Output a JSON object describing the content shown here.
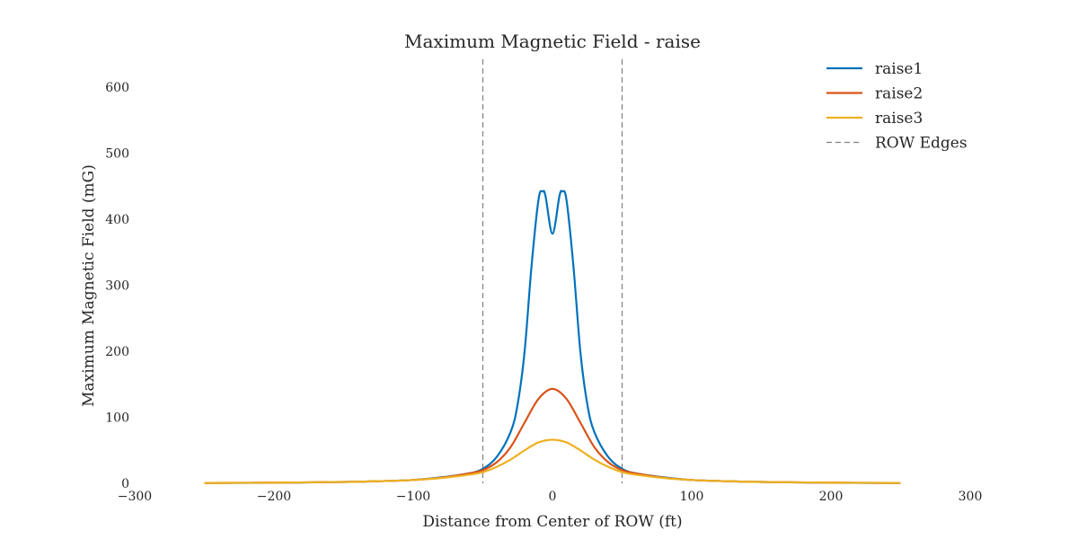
{
  "chart_data": {
    "type": "line",
    "title": "Maximum Magnetic Field - raise",
    "xlabel": "Distance from Center of ROW (ft)",
    "ylabel": "Maximum Magnetic Field (mG)",
    "xlim": [
      -300,
      300
    ],
    "ylim": [
      0,
      600
    ],
    "x_ticks": [
      "−300",
      "−200",
      "−100",
      "0",
      "100",
      "200",
      "300"
    ],
    "y_ticks": [
      "0",
      "100",
      "200",
      "300",
      "400",
      "500",
      "600"
    ],
    "grid": false,
    "legend_position": "top-right",
    "row_edges": {
      "name": "ROW Edges",
      "x": [
        -50,
        50
      ],
      "color": "#7f7f7f"
    },
    "series": [
      {
        "name": "raise1",
        "color": "#0072bd",
        "x": [
          -250,
          -200,
          -150,
          -120,
          -100,
          -80,
          -60,
          -50,
          -40,
          -30,
          -25,
          -20,
          -15,
          -10,
          -7,
          -5,
          0,
          5,
          7,
          10,
          15,
          20,
          25,
          30,
          40,
          50,
          60,
          80,
          100,
          120,
          150,
          200,
          250
        ],
        "y": [
          0.5,
          0.8,
          2,
          3.5,
          5,
          9,
          15,
          22,
          40,
          78,
          120,
          200,
          330,
          430,
          442,
          435,
          378,
          435,
          442,
          430,
          330,
          200,
          120,
          78,
          40,
          22,
          15,
          9,
          5,
          3.5,
          2,
          0.8,
          0.5
        ]
      },
      {
        "name": "raise2",
        "color": "#d95319",
        "x": [
          -250,
          -200,
          -150,
          -120,
          -100,
          -80,
          -60,
          -50,
          -40,
          -30,
          -20,
          -10,
          0,
          10,
          20,
          30,
          40,
          50,
          60,
          80,
          100,
          120,
          150,
          200,
          250
        ],
        "y": [
          0.5,
          1,
          2,
          3.5,
          5,
          8.5,
          15,
          20,
          32,
          55,
          92,
          128,
          143,
          128,
          92,
          55,
          32,
          20,
          15,
          8.5,
          5,
          3.5,
          2,
          1,
          0.5
        ]
      },
      {
        "name": "raise3",
        "color": "#edb120",
        "x": [
          -250,
          -200,
          -150,
          -120,
          -100,
          -80,
          -60,
          -50,
          -40,
          -30,
          -20,
          -10,
          0,
          10,
          20,
          30,
          40,
          50,
          60,
          80,
          100,
          120,
          150,
          200,
          250
        ],
        "y": [
          0.5,
          1,
          2,
          3.5,
          5,
          8,
          13,
          17,
          25,
          36,
          50,
          62,
          66,
          62,
          50,
          36,
          25,
          17,
          13,
          8,
          5,
          3.5,
          2,
          1,
          0.5
        ]
      }
    ]
  }
}
